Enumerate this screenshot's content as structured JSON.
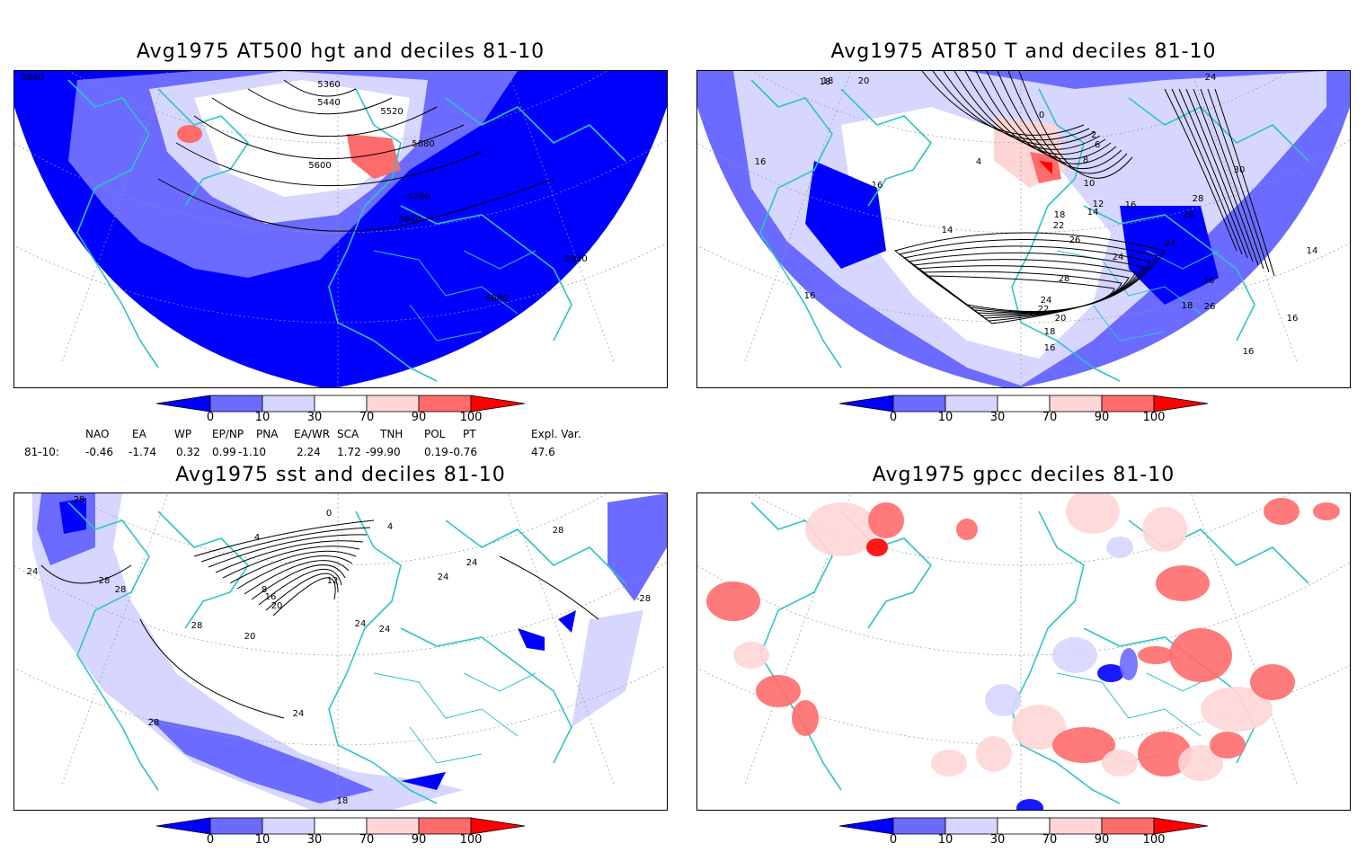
{
  "panels": [
    {
      "title": "Avg1975 AT500 hgt and deciles 81-10",
      "contour_labels": [
        "5360",
        "5440",
        "5520",
        "5600",
        "5680",
        "5760",
        "5840",
        "5840",
        "5840",
        "5840"
      ]
    },
    {
      "title": "Avg1975 AT850 T and deciles 81-10",
      "contour_labels": [
        "18",
        "20",
        "18",
        "16",
        "16",
        "14",
        "16",
        "0",
        "2",
        "6",
        "8",
        "10",
        "12",
        "14",
        "16",
        "18",
        "22",
        "26",
        "28",
        "24",
        "24",
        "22",
        "20",
        "18",
        "16",
        "24",
        "30",
        "28",
        "26",
        "24",
        "16",
        "26",
        "16",
        "18",
        "14",
        "16",
        "4"
      ]
    },
    {
      "title": "Avg1975 sst and deciles 81-10",
      "contour_labels": [
        "28",
        "24",
        "28",
        "28",
        "4",
        "0",
        "4",
        "8",
        "12",
        "16",
        "20",
        "20",
        "24",
        "28",
        "24",
        "28",
        "24",
        "-28",
        "24",
        "28",
        "24",
        "18"
      ]
    },
    {
      "title": "Avg1975 gpcc deciles 81-10",
      "contour_labels": []
    }
  ],
  "colorbar": {
    "ticks": [
      "0",
      "10",
      "30",
      "70",
      "90",
      "100"
    ],
    "colors": [
      "#0000ff",
      "#6b6bff",
      "#d6d6ff",
      "#ffffff",
      "#ffd6d6",
      "#ff6b6b",
      "#ff0000"
    ]
  },
  "indices": {
    "headers": [
      "NAO",
      "EA",
      "WP",
      "EP/NP",
      "PNA",
      "EA/WR",
      "SCA",
      "TNH",
      "POL",
      "PT",
      "Expl. Var."
    ],
    "row_label": "81-10:",
    "values": [
      "-0.46",
      "-1.74",
      "0.32",
      "0.99",
      "-1.10",
      "2.24",
      "1.72",
      "-99.90",
      "0.19",
      "-0.76",
      "47.6"
    ]
  },
  "colors": {
    "coast": "#2ec4c4",
    "frame": "#000000",
    "contour": "#000000",
    "grid": "#999999"
  }
}
